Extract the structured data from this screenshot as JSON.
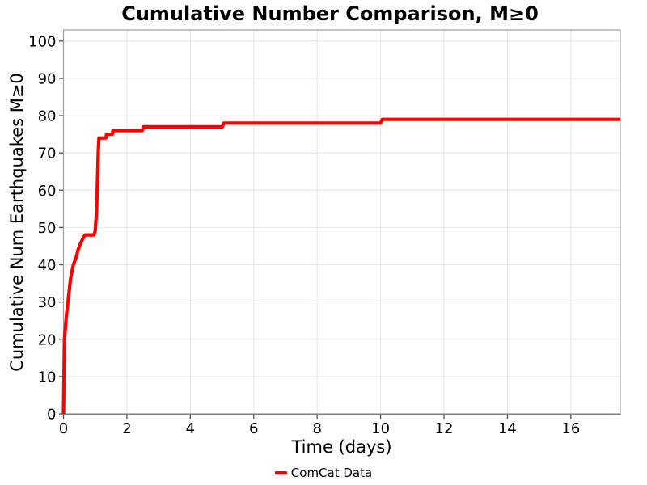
{
  "chart_data": {
    "type": "line",
    "title": "Cumulative Number Comparison, M≥0",
    "xlabel": "Time (days)",
    "ylabel": "Cumulative Num Earthquakes M≥0",
    "xlim": [
      0,
      17.56
    ],
    "ylim": [
      0,
      103
    ],
    "xticks": [
      0,
      2,
      4,
      6,
      8,
      10,
      12,
      14,
      16
    ],
    "yticks": [
      0,
      10,
      20,
      30,
      40,
      50,
      60,
      70,
      80,
      90,
      100
    ],
    "grid": true,
    "legend_position": "bottom-center",
    "series": [
      {
        "name": "ComCat Data",
        "color": "#FF0000",
        "points": [
          [
            0.0,
            0
          ],
          [
            0.015,
            10
          ],
          [
            0.03,
            20
          ],
          [
            0.07,
            24
          ],
          [
            0.1,
            27
          ],
          [
            0.14,
            30
          ],
          [
            0.18,
            33
          ],
          [
            0.22,
            36
          ],
          [
            0.26,
            38
          ],
          [
            0.31,
            40
          ],
          [
            0.4,
            42
          ],
          [
            0.46,
            44
          ],
          [
            0.55,
            46
          ],
          [
            0.61,
            47
          ],
          [
            0.68,
            48
          ],
          [
            0.96,
            48
          ],
          [
            1.0,
            49
          ],
          [
            1.04,
            54
          ],
          [
            1.06,
            59
          ],
          [
            1.08,
            65
          ],
          [
            1.1,
            71
          ],
          [
            1.12,
            74
          ],
          [
            1.34,
            74
          ],
          [
            1.36,
            75
          ],
          [
            1.54,
            75
          ],
          [
            1.56,
            76
          ],
          [
            2.49,
            76
          ],
          [
            2.52,
            77
          ],
          [
            5.01,
            77
          ],
          [
            5.05,
            78
          ],
          [
            10.0,
            78
          ],
          [
            10.05,
            79
          ],
          [
            17.56,
            79
          ]
        ]
      }
    ]
  },
  "legend": {
    "entries": [
      {
        "label": "ComCat Data",
        "color": "#FF0000"
      }
    ]
  },
  "colors": {
    "line": "#FF0000",
    "grid": "#E5E5E5",
    "panel_border": "#9E9E9E",
    "axis_line": "#808080",
    "tick": "#4D4D4D",
    "text": "#000000",
    "background": "#FFFFFF"
  }
}
